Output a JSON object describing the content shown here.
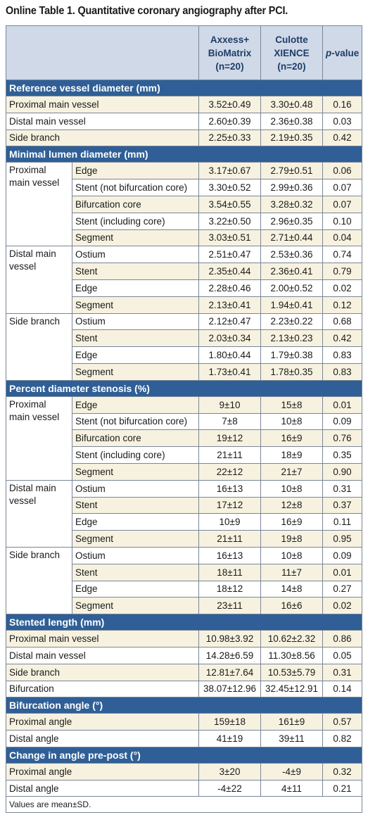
{
  "caption": "Online Table 1. Quantitative coronary angiography after PCI.",
  "header": {
    "col1": "Axxess+ BioMatrix (n=20)",
    "col1_lines": [
      "Axxess+",
      "BioMatrix",
      "(n=20)"
    ],
    "col2_lines": [
      "Culotte",
      "XIENCE",
      "(n=20)"
    ],
    "p_italic": "p",
    "p_rest": "-value"
  },
  "sections": {
    "ref": {
      "title": "Reference vessel diameter (mm)",
      "rows": [
        {
          "label": "Proximal main vessel",
          "a": "3.52±0.49",
          "b": "3.30±0.48",
          "p": "0.16"
        },
        {
          "label": "Distal main vessel",
          "a": "2.60±0.39",
          "b": "2.36±0.38",
          "p": "0.03"
        },
        {
          "label": "Side branch",
          "a": "2.25±0.33",
          "b": "2.19±0.35",
          "p": "0.42"
        }
      ]
    },
    "mld": {
      "title": "Minimal lumen diameter (mm)",
      "groups": [
        {
          "name": "Proximal main vessel",
          "rows": [
            {
              "label": "Edge",
              "a": "3.17±0.67",
              "b": "2.79±0.51",
              "p": "0.06"
            },
            {
              "label": "Stent (not bifurcation core)",
              "a": "3.30±0.52",
              "b": "2.99±0.36",
              "p": "0.07"
            },
            {
              "label": "Bifurcation core",
              "a": "3.54±0.55",
              "b": "3.28±0.32",
              "p": "0.07"
            },
            {
              "label": "Stent (including core)",
              "a": "3.22±0.50",
              "b": "2.96±0.35",
              "p": "0.10"
            },
            {
              "label": "Segment",
              "a": "3.03±0.51",
              "b": "2.71±0.44",
              "p": "0.04"
            }
          ]
        },
        {
          "name": "Distal main vessel",
          "rows": [
            {
              "label": "Ostium",
              "a": "2.51±0.47",
              "b": "2.53±0.36",
              "p": "0.74"
            },
            {
              "label": "Stent",
              "a": "2.35±0.44",
              "b": "2.36±0.41",
              "p": "0.79"
            },
            {
              "label": "Edge",
              "a": "2.28±0.46",
              "b": "2.00±0.52",
              "p": "0.02"
            },
            {
              "label": "Segment",
              "a": "2.13±0.41",
              "b": "1.94±0.41",
              "p": "0.12"
            }
          ]
        },
        {
          "name": "Side branch",
          "rows": [
            {
              "label": "Ostium",
              "a": "2.12±0.47",
              "b": "2.23±0.22",
              "p": "0.68"
            },
            {
              "label": "Stent",
              "a": "2.03±0.34",
              "b": "2.13±0.23",
              "p": "0.42"
            },
            {
              "label": "Edge",
              "a": "1.80±0.44",
              "b": "1.79±0.38",
              "p": "0.83"
            },
            {
              "label": "Segment",
              "a": "1.73±0.41",
              "b": "1.78±0.35",
              "p": "0.83"
            }
          ]
        }
      ]
    },
    "pds": {
      "title": "Percent diameter stenosis (%)",
      "groups": [
        {
          "name": "Proximal main vessel",
          "rows": [
            {
              "label": "Edge",
              "a": "9±10",
              "b": "15±8",
              "p": "0.01"
            },
            {
              "label": "Stent (not bifurcation core)",
              "a": "7±8",
              "b": "10±8",
              "p": "0.09"
            },
            {
              "label": "Bifurcation core",
              "a": "19±12",
              "b": "16±9",
              "p": "0.76"
            },
            {
              "label": "Stent (including core)",
              "a": "21±11",
              "b": "18±9",
              "p": "0.35"
            },
            {
              "label": "Segment",
              "a": "22±12",
              "b": "21±7",
              "p": "0.90"
            }
          ]
        },
        {
          "name": "Distal main vessel",
          "rows": [
            {
              "label": "Ostium",
              "a": "16±13",
              "b": "10±8",
              "p": "0.31"
            },
            {
              "label": "Stent",
              "a": "17±12",
              "b": "12±8",
              "p": "0.37"
            },
            {
              "label": "Edge",
              "a": "10±9",
              "b": "16±9",
              "p": "0.11"
            },
            {
              "label": "Segment",
              "a": "21±11",
              "b": "19±8",
              "p": "0.95"
            }
          ]
        },
        {
          "name": "Side branch",
          "rows": [
            {
              "label": "Ostium",
              "a": "16±13",
              "b": "10±8",
              "p": "0.09"
            },
            {
              "label": "Stent",
              "a": "18±11",
              "b": "11±7",
              "p": "0.01"
            },
            {
              "label": "Edge",
              "a": "18±12",
              "b": "14±8",
              "p": "0.27"
            },
            {
              "label": "Segment",
              "a": "23±11",
              "b": "16±6",
              "p": "0.02"
            }
          ]
        }
      ]
    },
    "len": {
      "title": "Stented length (mm)",
      "rows": [
        {
          "label": "Proximal main vessel",
          "a": "10.98±3.92",
          "b": "10.62±2.32",
          "p": "0.86"
        },
        {
          "label": "Distal main vessel",
          "a": "14.28±6.59",
          "b": "11.30±8.56",
          "p": "0.05"
        },
        {
          "label": "Side branch",
          "a": "12.81±7.64",
          "b": "10.53±5.79",
          "p": "0.31"
        },
        {
          "label": "Bifurcation",
          "a": "38.07±12.96",
          "b": "32.45±12.91",
          "p": "0.14"
        }
      ]
    },
    "angle": {
      "title": "Bifurcation angle (°)",
      "rows": [
        {
          "label": "Proximal angle",
          "a": "159±18",
          "b": "161±9",
          "p": "0.57"
        },
        {
          "label": "Distal angle",
          "a": "41±19",
          "b": "39±11",
          "p": "0.82"
        }
      ]
    },
    "change": {
      "title": "Change in angle pre-post (°)",
      "rows": [
        {
          "label": "Proximal angle",
          "a": "3±20",
          "b": "-4±9",
          "p": "0.32"
        },
        {
          "label": "Distal angle",
          "a": "-4±22",
          "b": "4±11",
          "p": "0.21"
        }
      ]
    }
  },
  "footnote": "Values are mean±SD."
}
